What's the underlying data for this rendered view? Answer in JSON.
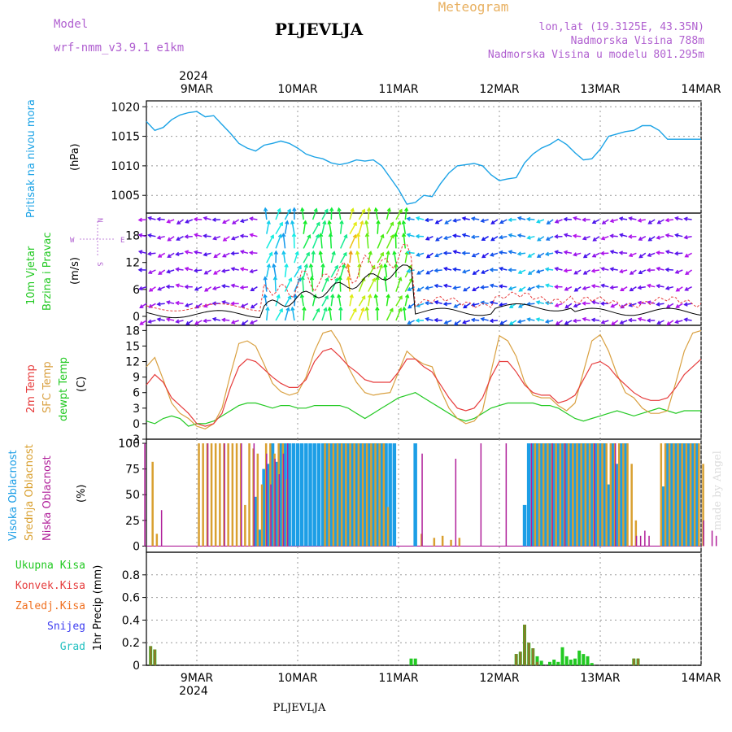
{
  "header": {
    "model_label": "Model",
    "model_name": "wrf-nmm_v3.9.1 e1km",
    "station": "PLJEVLJA",
    "product": "Meteogram",
    "lonlat": "lon,lat (19.3125E, 43.35N)",
    "elevation": "Nadmorska Visina 788m",
    "model_elevation": "Nadmorska Visina u modelu 801.295m",
    "footer_station": "PLJEVLJA",
    "credit": "made by Angel",
    "year_top": "2024",
    "year_bottom": "2024"
  },
  "colors": {
    "pressure": "#1ca3e6",
    "temp2m": "#e63c3c",
    "sfctemp": "#d9a040",
    "dewpt": "#22c922",
    "high_cloud": "#1c9ee6",
    "mid_cloud": "#d9a030",
    "low_cloud": "#b0209a",
    "precip_total": "#22c922",
    "precip_conv": "#e63c3c",
    "precip_frozen": "#f07020",
    "snow": "#3c3cf0",
    "hail": "#22c0c0",
    "title_purple": "#b060d0",
    "product_orange": "#e8b060"
  },
  "x_axis": {
    "days": [
      "9MAR",
      "10MAR",
      "11MAR",
      "12MAR",
      "13MAR",
      "14MAR"
    ],
    "range_hours": [
      -12,
      120
    ]
  },
  "panels": {
    "pressure": {
      "ylabel1": "Pritisak na nivou mora",
      "ylabel2": "(hPa)",
      "ticks": [
        "1005",
        "1010",
        "1015",
        "1020"
      ]
    },
    "wind": {
      "ylabel1": "10m Vjetar",
      "ylabel2": "Brzina i Pravac",
      "ylabel3": "(m/s)",
      "ticks": [
        "0",
        "6",
        "12",
        "18"
      ],
      "compass": {
        "n": "N",
        "s": "S",
        "e": "E",
        "w": "W"
      }
    },
    "temp": {
      "ylabel_2m": "2m Temp",
      "ylabel_sfc": "SFC Temp",
      "ylabel_dew": "dewpt Temp",
      "ylabel_unit": "(C)",
      "ticks": [
        "-3",
        "0",
        "3",
        "6",
        "9",
        "12",
        "15",
        "18"
      ]
    },
    "cloud": {
      "ylabel_high": "Visoka Oblacnost",
      "ylabel_mid": "Srednja Oblacnost",
      "ylabel_low": "Niska Oblacnost",
      "ylabel_unit": "(%)",
      "ticks": [
        "0",
        "25",
        "50",
        "75",
        "100"
      ]
    },
    "precip": {
      "legend_total": "Ukupna Kisa",
      "legend_conv": "Konvek.Kisa",
      "legend_frozen": "Zaledj.Kisa",
      "legend_snow": "Snijeg",
      "legend_hail": "Grad",
      "ylabel": "1hr Precip (mm)",
      "ticks": [
        "0",
        "0.2",
        "0.4",
        "0.6",
        "0.8"
      ]
    }
  },
  "chart_data": [
    {
      "type": "line",
      "name": "pressure",
      "ylim": [
        1002,
        1021
      ],
      "x": [
        -12,
        -10,
        -8,
        -6,
        -4,
        -2,
        0,
        2,
        4,
        6,
        8,
        10,
        12,
        14,
        16,
        18,
        20,
        22,
        24,
        26,
        28,
        30,
        32,
        34,
        36,
        38,
        40,
        42,
        44,
        46,
        48,
        50,
        52,
        54,
        56,
        58,
        60,
        62,
        64,
        66,
        68,
        70,
        72,
        74,
        76,
        78,
        80,
        82,
        84,
        86,
        88,
        90,
        92,
        94,
        96,
        98,
        100,
        102,
        104,
        106,
        108,
        110,
        112,
        114,
        116,
        118,
        120
      ],
      "values": [
        1017.5,
        1016,
        1016.5,
        1017.8,
        1018.6,
        1019,
        1019.2,
        1018.3,
        1018.5,
        1017,
        1015.5,
        1013.8,
        1013,
        1012.5,
        1013.5,
        1013.8,
        1014.2,
        1013.8,
        1013,
        1012,
        1011.5,
        1011.2,
        1010.5,
        1010.2,
        1010.5,
        1011,
        1010.8,
        1011,
        1010,
        1008,
        1006,
        1003.5,
        1003.8,
        1005,
        1004.8,
        1007,
        1008.8,
        1010,
        1010.2,
        1010.4,
        1010,
        1008.5,
        1007.5,
        1007.8,
        1008,
        1010.5,
        1012,
        1013,
        1013.6,
        1014.5,
        1013.6,
        1012.2,
        1011,
        1011.2,
        1012.8,
        1015,
        1015.4,
        1015.8,
        1016,
        1016.8,
        1016.8,
        1016,
        1014.5,
        1014.5,
        1014.5,
        1014.5,
        1014.5
      ]
    },
    {
      "type": "line",
      "name": "temperature",
      "ylim": [
        -3,
        19
      ],
      "x": [
        -12,
        -10,
        -8,
        -6,
        -4,
        -2,
        0,
        2,
        4,
        6,
        8,
        10,
        12,
        14,
        16,
        18,
        20,
        22,
        24,
        26,
        28,
        30,
        32,
        34,
        36,
        38,
        40,
        42,
        44,
        46,
        48,
        50,
        52,
        54,
        56,
        58,
        60,
        62,
        64,
        66,
        68,
        70,
        72,
        74,
        76,
        78,
        80,
        82,
        84,
        86,
        88,
        90,
        92,
        94,
        96,
        98,
        100,
        102,
        104,
        106,
        108,
        110,
        112,
        114,
        116,
        118,
        120
      ],
      "series": [
        {
          "name": "2m Temp",
          "values": [
            7.5,
            9.5,
            8,
            5,
            3.5,
            2,
            0,
            -0.5,
            0,
            2,
            7,
            11,
            12.5,
            12,
            10.5,
            9,
            7.8,
            7,
            7,
            8.5,
            12,
            14,
            14.5,
            13,
            11.2,
            10,
            8.5,
            8,
            8,
            8,
            10,
            12.5,
            12.5,
            11,
            10,
            7.5,
            5,
            3,
            2.5,
            3,
            5,
            9,
            12,
            12,
            10,
            7.5,
            6,
            5.5,
            5.5,
            4,
            4.5,
            5.5,
            8.5,
            11.5,
            12,
            11,
            9,
            7.5,
            6,
            5,
            4.5,
            4.5,
            5,
            7,
            9.5,
            11,
            12.5
          ]
        },
        {
          "name": "SFC Temp",
          "values": [
            11,
            12.8,
            8.5,
            4,
            2,
            1,
            -0.5,
            -1,
            0,
            3,
            9.5,
            15.5,
            16,
            15,
            11.5,
            7.8,
            6.2,
            5.5,
            6,
            9,
            14,
            17.5,
            18,
            15.5,
            11,
            8,
            6,
            5.5,
            5.8,
            6,
            10,
            14,
            12.5,
            11.5,
            11,
            6.5,
            3,
            1,
            0,
            0.5,
            2.5,
            10,
            17,
            16,
            13,
            8,
            5.5,
            5,
            5,
            3.5,
            2.5,
            4,
            10,
            16,
            17.2,
            14,
            9.5,
            6,
            5,
            3,
            2,
            2,
            2.5,
            8,
            14,
            17.5,
            18
          ]
        },
        {
          "name": "dewpt Temp",
          "values": [
            0.5,
            0,
            1,
            1.5,
            1,
            -0.5,
            0,
            0,
            0.5,
            1.5,
            2.5,
            3.5,
            4,
            4,
            3.5,
            3,
            3.5,
            3.5,
            3,
            3,
            3.5,
            3.5,
            3.5,
            3.5,
            3,
            2,
            1,
            2,
            3,
            4,
            5,
            5.5,
            6,
            5,
            4,
            3,
            2,
            1,
            0.5,
            1,
            2,
            3,
            3.5,
            4,
            4,
            4,
            4,
            3.5,
            3.5,
            3,
            2,
            1,
            0.5,
            1,
            1.5,
            2,
            2.5,
            2,
            1.5,
            2,
            2.5,
            3,
            2.5,
            2,
            2.5,
            2.5,
            2.5
          ]
        }
      ]
    },
    {
      "type": "bar",
      "name": "cloud_cover",
      "ylim": [
        0,
        100
      ],
      "series": [
        {
          "name": "Visoka Oblacnost",
          "x": [
            14,
            15,
            16,
            17,
            18,
            19,
            20,
            21,
            22,
            23,
            24,
            25,
            26,
            27,
            28,
            29,
            30,
            31,
            32,
            33,
            34,
            35,
            36,
            37,
            38,
            39,
            40,
            41,
            42,
            43,
            44,
            45,
            46,
            47,
            52,
            78,
            79,
            80,
            81,
            82,
            83,
            84,
            85,
            86,
            87,
            88,
            89,
            90,
            91,
            92,
            93,
            94,
            95,
            96,
            97,
            98,
            99,
            100,
            101,
            102,
            111,
            112,
            113,
            114,
            115,
            116,
            117,
            118,
            119
          ],
          "values": [
            48,
            16,
            75,
            80,
            100,
            82,
            100,
            100,
            100,
            100,
            100,
            100,
            100,
            100,
            100,
            100,
            100,
            100,
            100,
            100,
            100,
            100,
            100,
            100,
            100,
            100,
            100,
            100,
            100,
            100,
            100,
            100,
            100,
            100,
            100,
            40,
            100,
            100,
            100,
            100,
            100,
            100,
            100,
            100,
            100,
            100,
            100,
            100,
            100,
            100,
            100,
            100,
            100,
            100,
            100,
            60,
            100,
            80,
            100,
            100,
            58,
            100,
            100,
            100,
            100,
            100,
            100,
            100,
            100
          ]
        },
        {
          "name": "Srednja Oblacnost",
          "x": [
            -11,
            -10,
            0,
            1,
            2,
            3,
            4,
            5,
            6,
            7,
            8,
            9,
            10,
            11,
            12,
            13,
            14,
            15,
            16,
            17,
            18,
            19,
            20,
            21,
            30,
            31,
            32,
            33,
            34,
            35,
            36,
            37,
            38,
            39,
            40,
            41,
            42,
            43,
            44,
            45,
            53,
            56,
            58,
            60,
            62,
            80,
            81,
            82,
            83,
            84,
            85,
            86,
            87,
            88,
            89,
            90,
            91,
            92,
            93,
            94,
            95,
            96,
            97,
            98,
            99,
            100,
            101,
            102,
            103,
            104,
            110,
            111,
            112,
            113,
            114,
            115,
            116,
            117,
            118,
            119,
            120
          ],
          "values": [
            82,
            12,
            100,
            100,
            100,
            100,
            100,
            100,
            100,
            100,
            100,
            100,
            100,
            40,
            100,
            95,
            90,
            60,
            100,
            100,
            90,
            100,
            100,
            65,
            100,
            100,
            100,
            100,
            100,
            100,
            100,
            100,
            100,
            100,
            100,
            100,
            100,
            100,
            100,
            38,
            12,
            8,
            10,
            6,
            8,
            100,
            100,
            100,
            100,
            100,
            100,
            100,
            100,
            100,
            100,
            100,
            100,
            100,
            100,
            100,
            100,
            100,
            100,
            100,
            100,
            100,
            100,
            100,
            80,
            25,
            100,
            100,
            100,
            100,
            100,
            100,
            100,
            100,
            100,
            100,
            80
          ]
        },
        {
          "name": "Niska Oblacnost",
          "x": [
            -12,
            -8,
            3,
            7,
            11,
            14,
            17,
            18,
            19,
            20,
            21,
            22,
            54,
            62,
            68,
            74,
            80,
            85,
            88,
            95,
            100,
            105,
            106,
            107,
            108,
            121,
            123,
            124
          ],
          "values": [
            100,
            35,
            100,
            100,
            100,
            100,
            90,
            60,
            85,
            70,
            90,
            100,
            90,
            85,
            100,
            100,
            100,
            100,
            100,
            100,
            100,
            10,
            10,
            15,
            10,
            25,
            15,
            10
          ]
        }
      ]
    },
    {
      "type": "bar",
      "name": "precipitation",
      "ylim": [
        0,
        1
      ],
      "series": [
        {
          "name": "Ukupna Kisa",
          "x": [
            -11,
            -10,
            51,
            52,
            76,
            77,
            78,
            79,
            80,
            81,
            82,
            84,
            85,
            86,
            87,
            88,
            89,
            90,
            91,
            92,
            93,
            94,
            104,
            105
          ],
          "values": [
            0.17,
            0.14,
            0.06,
            0.06,
            0.1,
            0.12,
            0.36,
            0.2,
            0.15,
            0.08,
            0.04,
            0.03,
            0.05,
            0.03,
            0.16,
            0.08,
            0.05,
            0.06,
            0.13,
            0.1,
            0.08,
            0.02,
            0.06,
            0.06
          ]
        },
        {
          "name": "Zaledj.Kisa",
          "x": [
            -11,
            -10,
            76,
            77,
            78,
            79,
            80,
            81,
            104,
            105
          ],
          "values": [
            0.17,
            0.14,
            0.1,
            0.12,
            0.36,
            0.2,
            0.15,
            0.03,
            0.06,
            0.06
          ]
        }
      ]
    }
  ]
}
